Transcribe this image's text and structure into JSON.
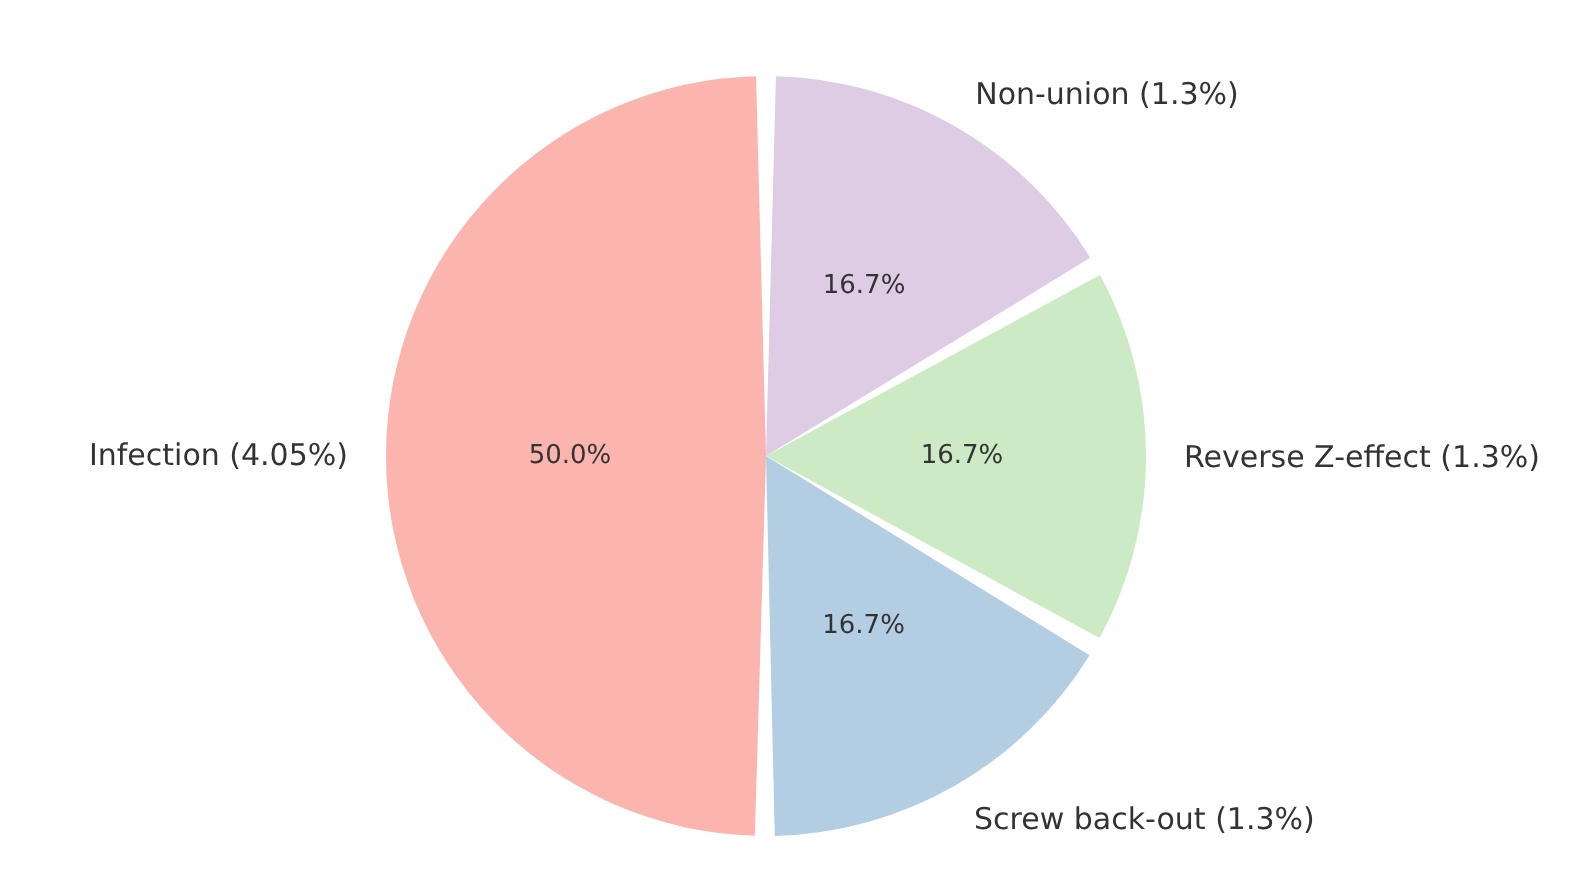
{
  "chart_data": {
    "type": "pie",
    "categories": [
      "Infection (4.05%)",
      "Screw back-out (1.3%)",
      "Reverse Z-effect (1.3%)",
      "Non-union (1.3%)"
    ],
    "values": [
      50.0,
      16.7,
      16.7,
      16.7
    ],
    "colors": [
      "#fbb4ae",
      "#b3cde3",
      "#ccebc5",
      "#decbe4"
    ],
    "value_labels": [
      "50.0%",
      "16.7%",
      "16.7%",
      "16.7%"
    ]
  }
}
